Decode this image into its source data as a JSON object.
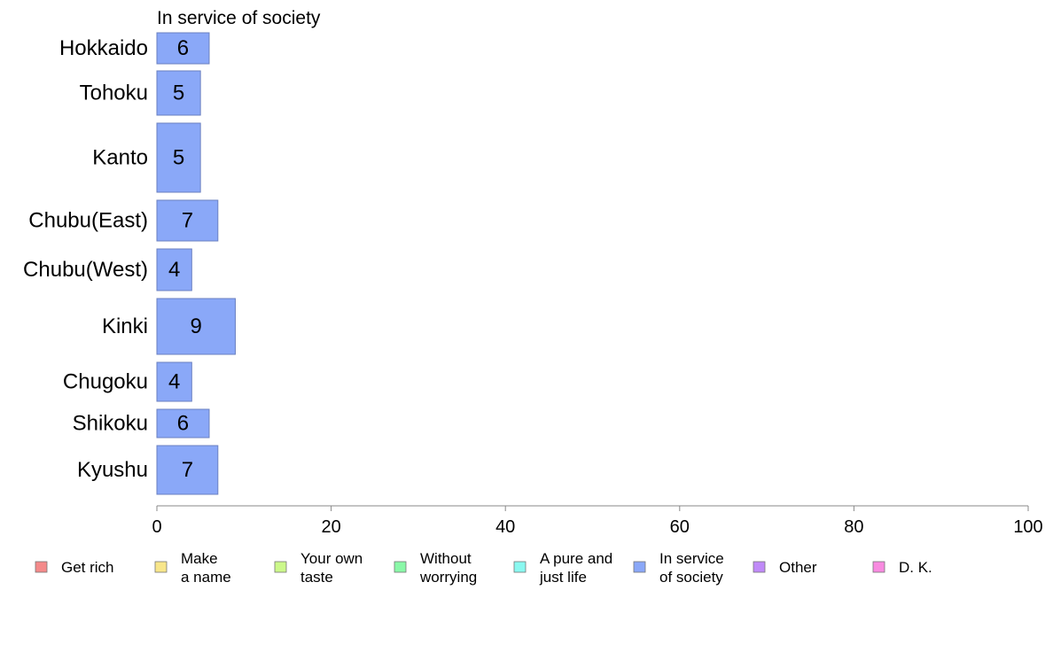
{
  "chart_data": {
    "type": "bar",
    "orientation": "horizontal",
    "title": "In service of society",
    "categories": [
      "Hokkaido",
      "Tohoku",
      "Kanto",
      "Chubu(East)",
      "Chubu(West)",
      "Kinki",
      "Chugoku",
      "Shikoku",
      "Kyushu"
    ],
    "series": [
      {
        "name": "In service of society",
        "color": "#8aa8f8",
        "values": [
          6,
          5,
          5,
          7,
          4,
          9,
          4,
          6,
          7
        ],
        "labels": [
          "6",
          "5",
          "5",
          "7",
          "4",
          "9",
          "4",
          "6",
          "7"
        ]
      }
    ],
    "xlim": [
      0,
      100
    ],
    "xticks": [
      0,
      20,
      40,
      60,
      80,
      100
    ],
    "xtick_labels": [
      "0",
      "20",
      "40",
      "60",
      "80",
      "100"
    ],
    "grid": false,
    "legend_position": "bottom",
    "legend": [
      {
        "lines": [
          "Get rich"
        ],
        "color": "#f48a8a"
      },
      {
        "lines": [
          "Make",
          "a name"
        ],
        "color": "#f8e68a"
      },
      {
        "lines": [
          "Your own",
          "taste"
        ],
        "color": "#ccf88a"
      },
      {
        "lines": [
          "Without",
          "worrying"
        ],
        "color": "#8af8a8"
      },
      {
        "lines": [
          "A pure and",
          "just life"
        ],
        "color": "#8af8f0"
      },
      {
        "lines": [
          "In service",
          "of society"
        ],
        "color": "#8aa8f8"
      },
      {
        "lines": [
          "Other"
        ],
        "color": "#c08af8"
      },
      {
        "lines": [
          "D. K."
        ],
        "color": "#f88ae0"
      }
    ]
  }
}
